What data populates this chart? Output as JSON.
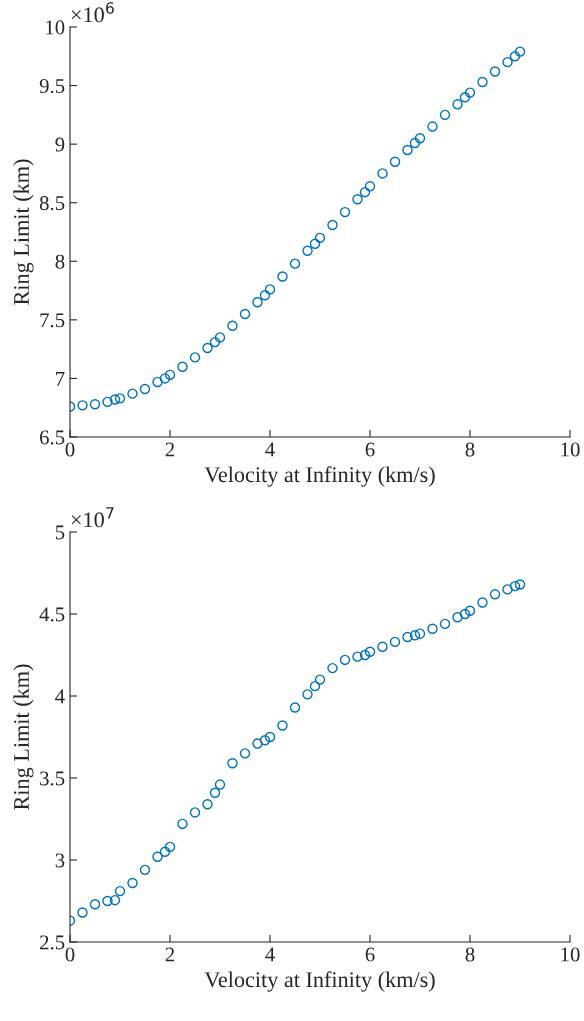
{
  "chart_data": [
    {
      "type": "scatter",
      "xlabel": "Velocity at Infinity (km/s)",
      "ylabel": "Ring Limit (km)",
      "annotations": [
        "×10$^{6}$"
      ],
      "marker": "circle",
      "grid": false,
      "x": [
        0,
        0.25,
        0.5,
        0.75,
        0.9,
        1,
        1.25,
        1.5,
        1.75,
        1.9,
        2,
        2.25,
        2.5,
        2.75,
        2.9,
        3,
        3.25,
        3.5,
        3.75,
        3.9,
        4,
        4.25,
        4.5,
        4.75,
        4.9,
        5,
        5.25,
        5.5,
        5.75,
        5.9,
        6,
        6.25,
        6.5,
        6.75,
        6.9,
        7,
        7.25,
        7.5,
        7.75,
        7.9,
        8,
        8.25,
        8.5,
        8.75,
        8.9,
        9
      ],
      "series": [
        {
          "color": "#0072bd",
          "values": [
            6.76,
            6.77,
            6.78,
            6.8,
            6.82,
            6.83,
            6.87,
            6.91,
            6.97,
            7.0,
            7.03,
            7.1,
            7.18,
            7.26,
            7.31,
            7.35,
            7.45,
            7.55,
            7.65,
            7.71,
            7.76,
            7.87,
            7.98,
            8.09,
            8.15,
            8.2,
            8.31,
            8.42,
            8.53,
            8.59,
            8.64,
            8.75,
            8.85,
            8.95,
            9.01,
            9.05,
            9.15,
            9.25,
            9.34,
            9.4,
            9.44,
            9.53,
            9.62,
            9.7,
            9.75,
            9.79
          ]
        }
      ],
      "xlim": [
        0,
        10
      ],
      "xticks": [
        0,
        2,
        4,
        6,
        8,
        10
      ],
      "ylim": [
        6.5,
        10
      ],
      "yticks": [
        6.5,
        7,
        7.5,
        8,
        8.5,
        9,
        9.5,
        10
      ]
    },
    {
      "type": "scatter",
      "xlabel": "Velocity at Infinity (km/s)",
      "ylabel": "Ring Limit (km)",
      "annotations": [
        "×10$^{7}$"
      ],
      "marker": "circle",
      "grid": false,
      "x": [
        0,
        0.25,
        0.5,
        0.75,
        0.9,
        1,
        1.25,
        1.5,
        1.75,
        1.9,
        2,
        2.25,
        2.5,
        2.75,
        2.9,
        3,
        3.25,
        3.5,
        3.75,
        3.9,
        4,
        4.25,
        4.5,
        4.75,
        4.9,
        5,
        5.25,
        5.5,
        5.75,
        5.9,
        6,
        6.25,
        6.5,
        6.75,
        6.9,
        7,
        7.25,
        7.5,
        7.75,
        7.9,
        8,
        8.25,
        8.5,
        8.75,
        8.9,
        9
      ],
      "series": [
        {
          "color": "#0072bd",
          "values": [
            2.63,
            2.68,
            2.73,
            2.75,
            2.755,
            2.81,
            2.86,
            2.94,
            3.02,
            3.05,
            3.08,
            3.22,
            3.29,
            3.34,
            3.41,
            3.46,
            3.59,
            3.65,
            3.71,
            3.73,
            3.75,
            3.82,
            3.93,
            4.01,
            4.06,
            4.1,
            4.17,
            4.22,
            4.24,
            4.25,
            4.27,
            4.3,
            4.33,
            4.36,
            4.37,
            4.38,
            4.41,
            4.44,
            4.48,
            4.5,
            4.52,
            4.57,
            4.62,
            4.65,
            4.67,
            4.68
          ]
        }
      ],
      "xlim": [
        0,
        10
      ],
      "xticks": [
        0,
        2,
        4,
        6,
        8,
        10
      ],
      "ylim": [
        2.5,
        5
      ],
      "yticks": [
        2.5,
        3,
        3.5,
        4,
        4.5,
        5
      ]
    }
  ]
}
